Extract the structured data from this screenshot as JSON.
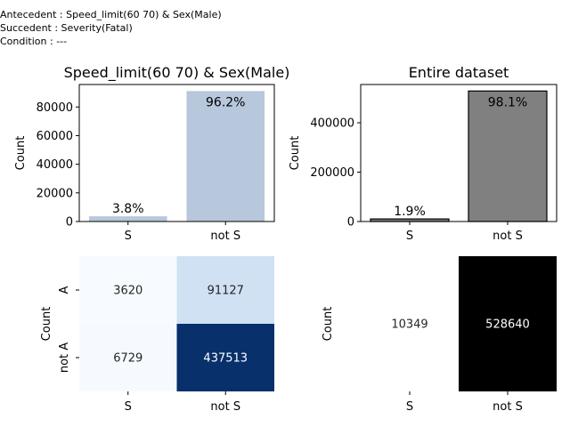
{
  "header": {
    "antecedent": "Antecedent : Speed_limit(60 70) & Sex(Male)",
    "succedent": "Succedent : Severity(Fatal)",
    "condition": "Condition : ---"
  },
  "chart_data": [
    {
      "type": "bar",
      "title": "Speed_limit(60 70) & Sex(Male)",
      "ylabel": "Count",
      "categories": [
        "S",
        "not S"
      ],
      "values": [
        3620,
        91127
      ],
      "data_labels": [
        "3.8%",
        "96.2%"
      ],
      "ylim": [
        0,
        95700
      ],
      "yticks": [
        0,
        20000,
        40000,
        60000,
        80000
      ],
      "color": "#b7c7dc",
      "edgecolor": "none"
    },
    {
      "type": "bar",
      "title": "Entire dataset",
      "ylabel": "Count",
      "categories": [
        "S",
        "not S"
      ],
      "values": [
        10349,
        528640
      ],
      "data_labels": [
        "1.9%",
        "98.1%"
      ],
      "ylim": [
        0,
        555000
      ],
      "yticks": [
        0,
        200000,
        400000
      ],
      "color": "#808080",
      "edgecolor": "#000000"
    },
    {
      "type": "heatmap",
      "ylabel": "Count",
      "x_categories": [
        "S",
        "not S"
      ],
      "y_categories": [
        "A",
        "not A"
      ],
      "values": [
        [
          3620,
          91127
        ],
        [
          6729,
          437513
        ]
      ],
      "colormap": "Blues"
    },
    {
      "type": "heatmap",
      "ylabel": "Count",
      "x_categories": [
        "S",
        "not S"
      ],
      "y_categories": [],
      "values": [
        [
          10349,
          528640
        ]
      ],
      "colormap": "Greys"
    }
  ]
}
